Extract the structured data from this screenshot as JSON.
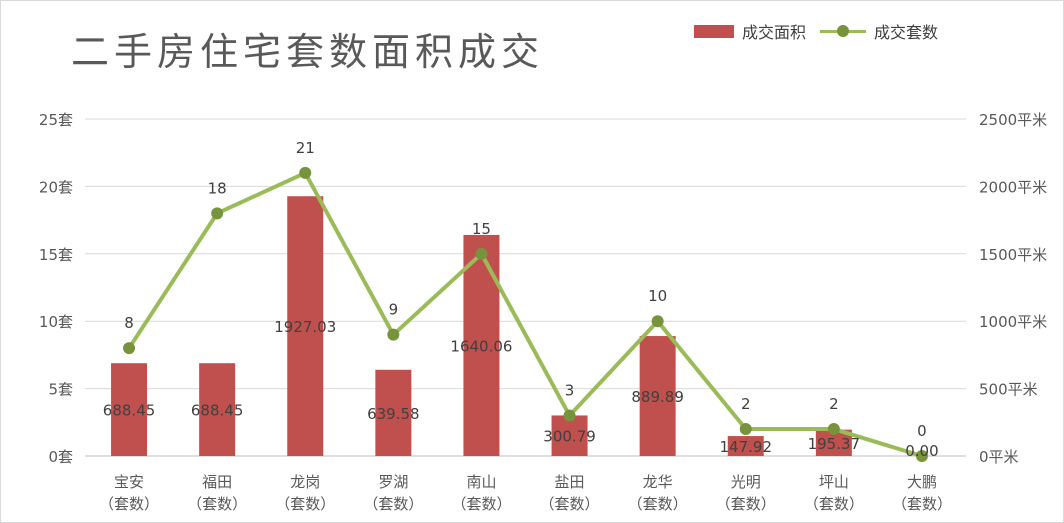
{
  "chart_data": {
    "type": "bar",
    "title": "二手房住宅套数面积成交",
    "categories": [
      [
        "宝安",
        "（套数）"
      ],
      [
        "福田",
        "（套数）"
      ],
      [
        "龙岗",
        "（套数）"
      ],
      [
        "罗湖",
        "（套数）"
      ],
      [
        "南山",
        "（套数）"
      ],
      [
        "盐田",
        "（套数）"
      ],
      [
        "龙华",
        "（套数）"
      ],
      [
        "光明",
        "（套数）"
      ],
      [
        "坪山",
        "（套数）"
      ],
      [
        "大鹏",
        "（套数）"
      ]
    ],
    "series": [
      {
        "name": "成交面积",
        "type": "bar",
        "axis": "right",
        "color": "#c0504d",
        "values": [
          688.45,
          688.45,
          1927.03,
          639.58,
          1640.06,
          300.79,
          889.89,
          147.92,
          195.37,
          0.0
        ],
        "labels": [
          "688.45",
          "688.45",
          "1927.03",
          "639.58",
          "1640.06",
          "300.79",
          "889.89",
          "147.92",
          "195.37",
          "0.00"
        ]
      },
      {
        "name": "成交套数",
        "type": "line",
        "axis": "left",
        "color": "#9bbb59",
        "marker_color": "#77933c",
        "values": [
          8,
          18,
          21,
          9,
          15,
          3,
          10,
          2,
          2,
          0
        ],
        "labels": [
          "8",
          "18",
          "21",
          "9",
          "15",
          "3",
          "10",
          "2",
          "2",
          "0"
        ]
      }
    ],
    "y_left": {
      "lim": [
        0,
        25
      ],
      "ticks": [
        "0套",
        "5套",
        "10套",
        "15套",
        "20套",
        "25套"
      ]
    },
    "y_right": {
      "lim": [
        0,
        2500
      ],
      "ticks": [
        "0平米",
        "500平米",
        "1000平米",
        "1500平米",
        "2000平米",
        "2500平米"
      ]
    },
    "grid": true,
    "legend_position": "top-right"
  }
}
